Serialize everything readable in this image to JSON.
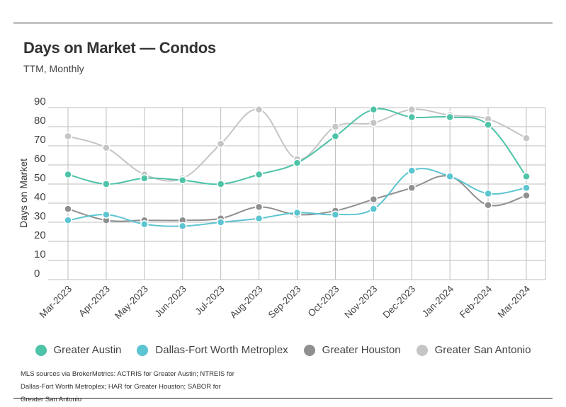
{
  "title": "Days on Market — Condos",
  "subtitle": "TTM, Monthly",
  "source": "MLS sources via BrokerMetrics: ACTRIS for Greater Austin; NTREIS for Dallas-Fort Worth Metroplex; HAR for Greater Houston; SABOR for Greater San Antonio",
  "chart_data": {
    "type": "line",
    "title": "Days on Market — Condos",
    "subtitle": "TTM, Monthly",
    "xlabel": "",
    "ylabel": "Days on Market",
    "ylim": [
      0,
      90
    ],
    "yticks": [
      0,
      10,
      20,
      30,
      40,
      50,
      60,
      70,
      80,
      90
    ],
    "grid": true,
    "legend": "bottom",
    "categories": [
      "Mar-2023",
      "Apr-2023",
      "May-2023",
      "Jun-2023",
      "Jul-2023",
      "Aug-2023",
      "Sep-2023",
      "Oct-2023",
      "Nov-2023",
      "Dec-2023",
      "Jan-2024",
      "Feb-2024",
      "Mar-2024"
    ],
    "series": [
      {
        "name": "Greater Austin",
        "color": "#4ec3a8",
        "values": [
          55,
          50,
          53,
          52,
          50,
          55,
          61,
          75,
          89,
          85,
          85,
          81,
          54
        ]
      },
      {
        "name": "Dallas-Fort Worth Metroplex",
        "color": "#5bc5d1",
        "values": [
          31,
          34,
          29,
          28,
          30,
          32,
          35,
          34,
          37,
          57,
          54,
          45,
          48
        ]
      },
      {
        "name": "Greater Houston",
        "color": "#8f8f8f",
        "values": [
          37,
          31,
          31,
          31,
          32,
          38,
          34,
          36,
          42,
          48,
          54,
          39,
          44
        ]
      },
      {
        "name": "Greater San Antonio",
        "color": "#c5c5c5",
        "values": [
          75,
          69,
          55,
          53,
          71,
          89,
          63,
          80,
          82,
          89,
          86,
          84,
          74
        ]
      }
    ]
  }
}
